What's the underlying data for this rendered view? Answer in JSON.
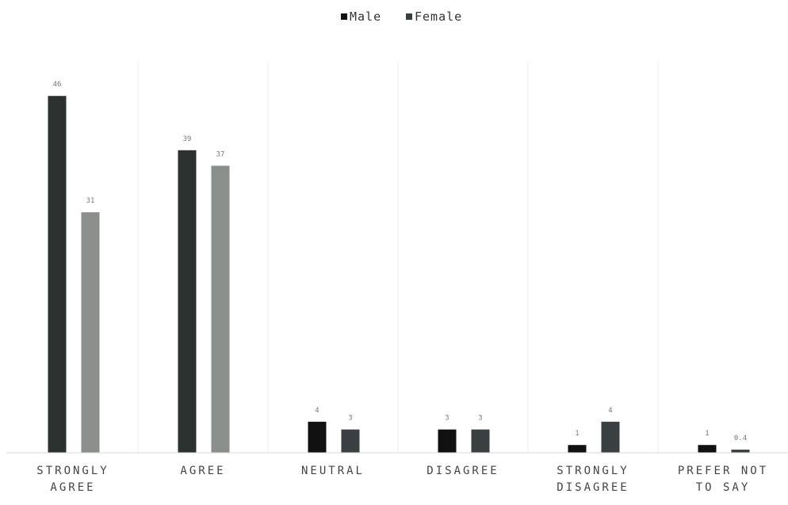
{
  "chart_data": {
    "type": "bar",
    "categories": [
      [
        "STRONGLY",
        "AGREE"
      ],
      [
        "AGREE"
      ],
      [
        "NEUTRAL"
      ],
      [
        "DISAGREE"
      ],
      [
        "STRONGLY",
        "DISAGREE"
      ],
      [
        "PREFER NOT",
        "TO SAY"
      ]
    ],
    "series": [
      {
        "name": "Male",
        "values": [
          46,
          39,
          4,
          3,
          1,
          1
        ],
        "color": "#2b3230"
      },
      {
        "name": "Female",
        "values": [
          31,
          37,
          3,
          3,
          4,
          0.4
        ],
        "color": "#8a8f8c"
      }
    ],
    "series_colors_override": {
      "Male": [
        "#2b3230",
        "#2b3230",
        "#111111",
        "#111111",
        "#111111",
        "#111111"
      ],
      "Female": [
        "#8a8f8c",
        "#8a8f8c",
        "#3a3f42",
        "#3a3f42",
        "#3a3f42",
        "#3a3f42"
      ]
    },
    "legend_position": "top-center",
    "grid": false,
    "ylim": [
      0,
      50
    ]
  }
}
